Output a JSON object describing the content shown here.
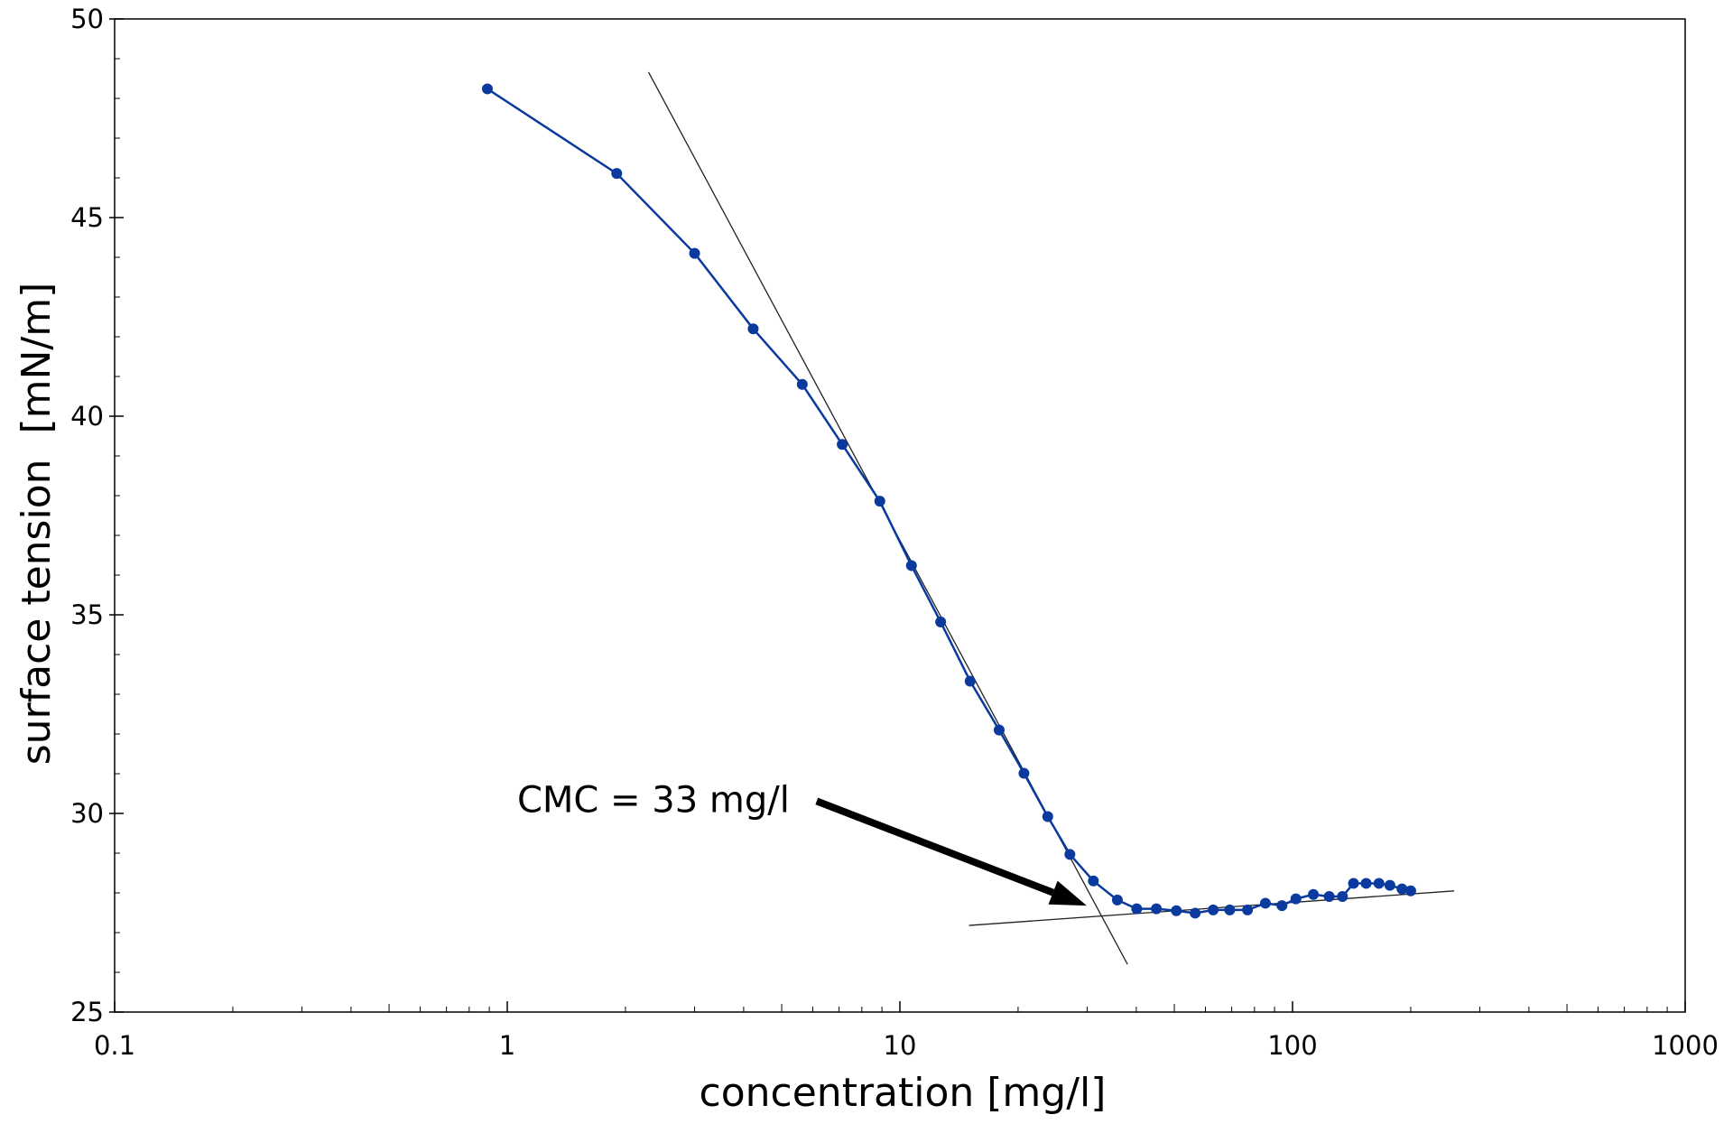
{
  "chart_data": {
    "type": "line",
    "xlabel": "concentration [mg/l]",
    "ylabel": "surface tension  [mN/m]",
    "xscale": "log",
    "xlim": [
      0.1,
      1000
    ],
    "ylim": [
      25,
      50
    ],
    "xticks": [
      "0.1",
      "1",
      "10",
      "100",
      "1000"
    ],
    "yticks": [
      "25",
      "30",
      "35",
      "40",
      "45",
      "50"
    ],
    "grid": false,
    "series_color": "#0b3a9f",
    "series": [
      {
        "x": [
          0.89,
          1.9,
          3.0,
          4.23,
          5.64,
          7.13,
          8.89,
          10.7,
          12.7,
          15.1,
          17.9,
          20.7,
          23.8,
          27.1,
          31.1,
          35.8,
          40.1,
          45.0,
          50.6,
          56.5,
          62.8,
          69.2,
          76.8,
          85.3,
          94.0,
          102,
          113,
          124,
          134,
          143,
          154,
          166,
          177,
          190,
          200
        ],
        "y": [
          48.24,
          46.11,
          44.1,
          42.2,
          40.8,
          39.29,
          37.86,
          36.24,
          34.82,
          33.33,
          32.1,
          31.01,
          29.92,
          28.97,
          28.3,
          27.82,
          27.6,
          27.6,
          27.55,
          27.49,
          27.57,
          27.57,
          27.57,
          27.74,
          27.68,
          27.85,
          27.96,
          27.91,
          27.91,
          28.24,
          28.24,
          28.24,
          28.19,
          28.1,
          28.05
        ]
      }
    ],
    "fit_lines": [
      {
        "x": [
          2.29,
          38.0
        ],
        "y": [
          48.66,
          26.2
        ]
      },
      {
        "x": [
          15.0,
          258
        ],
        "y": [
          27.18,
          28.05
        ]
      }
    ],
    "annotation": {
      "text": "CMC = 33 mg/l",
      "arrow_from": [
        6.14,
        30.31
      ],
      "arrow_to": [
        29.9,
        27.68
      ]
    }
  }
}
